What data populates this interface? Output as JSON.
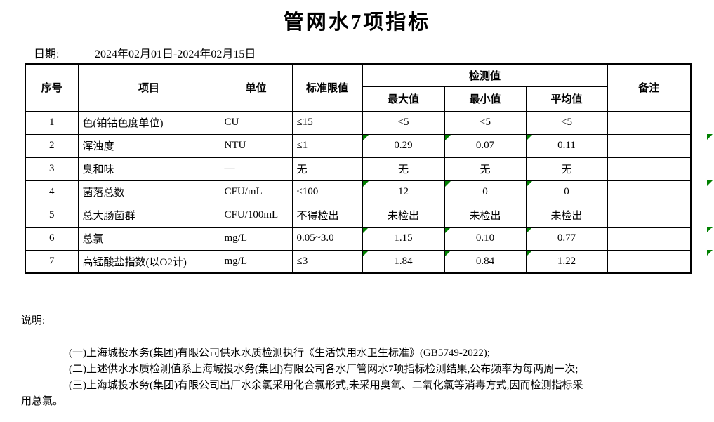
{
  "title": "管网水7项指标",
  "date": {
    "label": "日期:",
    "value": "2024年02月01日-2024年02月15日"
  },
  "table": {
    "headers": {
      "seq": "序号",
      "item": "项目",
      "unit": "单位",
      "limit": "标准限值",
      "detection": "检测值",
      "max": "最大值",
      "min": "最小值",
      "avg": "平均值",
      "remark": "备注"
    },
    "rows": [
      {
        "seq": "1",
        "item": "色(铂钴色度单位)",
        "unit": "CU",
        "limit": "≤15",
        "max": "<5",
        "min": "<5",
        "avg": "<5",
        "remark": "",
        "marked": false
      },
      {
        "seq": "2",
        "item": "浑浊度",
        "unit": "NTU",
        "limit": "≤1",
        "max": "0.29",
        "min": "0.07",
        "avg": "0.11",
        "remark": "",
        "marked": true
      },
      {
        "seq": "3",
        "item": "臭和味",
        "unit": "—",
        "limit": "无",
        "max": "无",
        "min": "无",
        "avg": "无",
        "remark": "",
        "marked": false
      },
      {
        "seq": "4",
        "item": "菌落总数",
        "unit": "CFU/mL",
        "limit": "≤100",
        "max": "12",
        "min": "0",
        "avg": "0",
        "remark": "",
        "marked": true
      },
      {
        "seq": "5",
        "item": "总大肠菌群",
        "unit": "CFU/100mL",
        "limit": "不得检出",
        "max": "未检出",
        "min": "未检出",
        "avg": "未检出",
        "remark": "",
        "marked": false
      },
      {
        "seq": "6",
        "item": "总氯",
        "unit": "mg/L",
        "limit": "0.05~3.0",
        "max": "1.15",
        "min": "0.10",
        "avg": "0.77",
        "remark": "",
        "marked": true
      },
      {
        "seq": "7",
        "item": "高锰酸盐指数(以O2计)",
        "unit": "mg/L",
        "limit": "≤3",
        "max": "1.84",
        "min": "0.84",
        "avg": "1.22",
        "remark": "",
        "marked": true
      }
    ]
  },
  "notes": {
    "label": "说明:",
    "items": [
      [
        "(一)上海城投水务(集团)有限公司供水水质检测执行《生活饮用水卫生标准》(GB5749-2022);"
      ],
      [
        "(二)上述供水水质检测值系上海城投水务(集团)有限公司各水厂管网水7项指标检测结果,公布频率为每两周一次;"
      ],
      [
        "(三)上海城投水务(集团)有限公司出厂水余氯采用化合氯形式,未采用臭氧、二氧化氯等消毒方式,因而检测指标采",
        "用总氯。"
      ]
    ]
  },
  "colors": {
    "marker_green": "#008000",
    "border": "#000000",
    "background": "#ffffff"
  }
}
